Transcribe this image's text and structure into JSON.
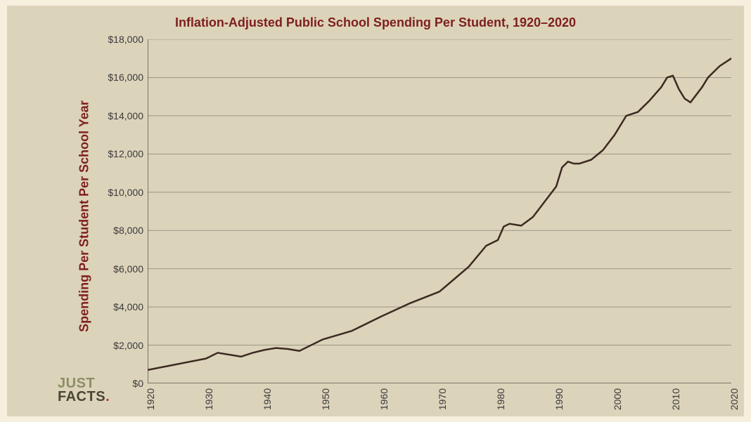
{
  "chart": {
    "type": "line",
    "title": "Inflation-Adjusted Public School Spending Per Student, 1920–2020",
    "title_fontsize": 18,
    "title_color": "#7e1f1f",
    "ylabel": "Spending Per Student Per School Year",
    "ylabel_fontsize": 18,
    "ylabel_color": "#7e1f1f",
    "background_color_outer": "#f6efdd",
    "background_color_inner": "#dcd3bb",
    "plot_background": "#dcd3bb",
    "grid_color": "#9b9684",
    "axis_color": "#5a5647",
    "tick_label_color": "#3a3a3a",
    "tick_fontsize": 14,
    "line_color": "#3c2a20",
    "line_width": 2.5,
    "xlim": [
      1920,
      2020
    ],
    "xtick_step": 10,
    "xticks": [
      1920,
      1930,
      1940,
      1950,
      1960,
      1970,
      1980,
      1990,
      2000,
      2010,
      2020
    ],
    "xtick_labels": [
      "1920",
      "1930",
      "1940",
      "1950",
      "1960",
      "1970",
      "1980",
      "1990",
      "2000",
      "2010",
      "2020"
    ],
    "xtick_rotation": -90,
    "ylim": [
      0,
      18000
    ],
    "ytick_step": 2000,
    "yticks": [
      0,
      2000,
      4000,
      6000,
      8000,
      10000,
      12000,
      14000,
      16000,
      18000
    ],
    "ytick_labels": [
      "$0",
      "$2,000",
      "$4,000",
      "$6,000",
      "$8,000",
      "$10,000",
      "$12,000",
      "$14,000",
      "$16,000",
      "$18,000"
    ],
    "x": [
      1920,
      1925,
      1930,
      1932,
      1934,
      1936,
      1938,
      1940,
      1942,
      1944,
      1946,
      1948,
      1950,
      1955,
      1960,
      1965,
      1970,
      1975,
      1978,
      1980,
      1981,
      1982,
      1984,
      1986,
      1988,
      1990,
      1991,
      1992,
      1993,
      1994,
      1996,
      1998,
      2000,
      2002,
      2004,
      2006,
      2008,
      2009,
      2010,
      2011,
      2012,
      2013,
      2014,
      2015,
      2016,
      2018,
      2020
    ],
    "y": [
      700,
      1000,
      1300,
      1600,
      1500,
      1400,
      1600,
      1750,
      1850,
      1800,
      1700,
      2000,
      2300,
      2750,
      3500,
      4200,
      4800,
      6100,
      7200,
      7500,
      8200,
      8350,
      8250,
      8700,
      9500,
      10300,
      11300,
      11600,
      11500,
      11500,
      11700,
      12200,
      13000,
      14000,
      14200,
      14800,
      15500,
      16000,
      16100,
      15400,
      14900,
      14700,
      15100,
      15500,
      16000,
      16600,
      17000
    ]
  },
  "logo": {
    "line1": "JUST",
    "line2": "FACTS",
    "dot": ".",
    "color_just": "#8b9063",
    "color_facts": "#4a4635",
    "color_dot": "#b2352b"
  }
}
